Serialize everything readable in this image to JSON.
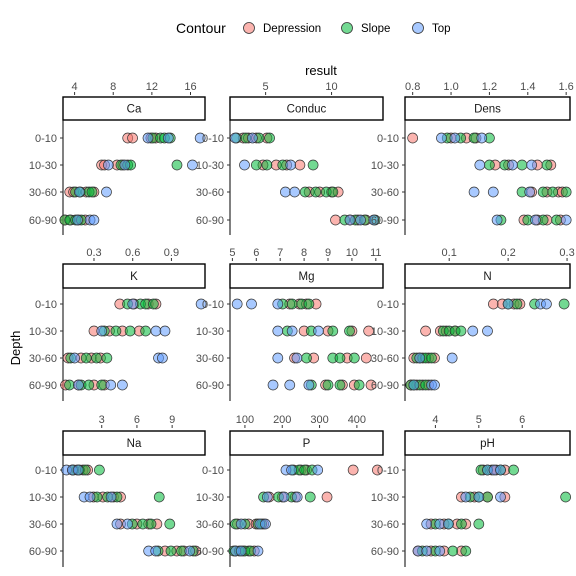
{
  "chart_data": {
    "type": "scatter",
    "title": "",
    "xlabel": "result",
    "ylabel": "Depth",
    "legend": {
      "title": "Contour",
      "position": "top",
      "entries": [
        {
          "name": "Depression",
          "color": "#F8766D"
        },
        {
          "name": "Slope",
          "color": "#00BA38"
        },
        {
          "name": "Top",
          "color": "#619CFF"
        }
      ]
    },
    "depth_levels": [
      "0-10",
      "10-30",
      "30-60",
      "60-90"
    ],
    "point_style": {
      "radius": 5,
      "fill_opacity": 0.55,
      "stroke": "#333333"
    },
    "grid": false,
    "facets": [
      {
        "name": "Ca",
        "xlim": [
          2.8,
          17.5
        ],
        "xticks": [
          4,
          8,
          12,
          16
        ],
        "points": {
          "Depression": {
            "0-10": [
              9.5,
              10.0,
              11.9,
              12.4
            ],
            "10-30": [
              6.8,
              7.1,
              8.4,
              9.0
            ],
            "30-60": [
              3.5,
              3.9,
              5.2,
              6.0
            ],
            "60-90": [
              3.0,
              3.6,
              4.4,
              5.1
            ]
          },
          "Slope": {
            "0-10": [
              12.1,
              12.9,
              13.3,
              13.9
            ],
            "10-30": [
              8.8,
              9.5,
              9.8,
              14.6
            ],
            "30-60": [
              4.1,
              4.6,
              5.5,
              5.8
            ],
            "60-90": [
              3.0,
              3.5,
              4.1,
              4.7
            ]
          },
          "Top": {
            "0-10": [
              11.6,
              13.7,
              17.0
            ],
            "10-30": [
              7.5,
              9.2,
              16.2
            ],
            "30-60": [
              4.5,
              7.3
            ],
            "60-90": [
              4.3,
              5.6,
              6.0
            ]
          }
        }
      },
      {
        "name": "Conduc",
        "xlim": [
          2.3,
          13.9
        ],
        "xticks": [
          5,
          10
        ],
        "points": {
          "Depression": {
            "0-10": [
              3.3,
              3.7,
              4.3,
              5.1
            ],
            "10-30": [
              4.8,
              5.8,
              6.6,
              7.6
            ],
            "30-60": [
              8.3,
              9.1,
              10.0,
              10.5
            ],
            "60-90": [
              10.3,
              11.4,
              12.0,
              12.6
            ]
          },
          "Slope": {
            "0-10": [
              2.8,
              3.5,
              4.5,
              5.3
            ],
            "10-30": [
              4.3,
              5.1,
              6.3,
              8.6
            ],
            "30-60": [
              8.0,
              8.8,
              9.6,
              10.1
            ],
            "60-90": [
              11.0,
              11.8,
              12.5,
              13.3
            ]
          },
          "Top": {
            "0-10": [
              2.7,
              4.0
            ],
            "10-30": [
              3.4,
              6.9
            ],
            "30-60": [
              6.5,
              7.2
            ],
            "60-90": [
              11.4,
              12.2,
              13.2
            ]
          }
        }
      },
      {
        "name": "Dens",
        "xlim": [
          0.76,
          1.62
        ],
        "xticks": [
          0.8,
          1.0,
          1.2,
          1.4,
          1.6
        ],
        "xtick_labels": [
          "0.8",
          "1.0",
          "1.2",
          "1.4",
          "1.6"
        ],
        "points": {
          "Depression": {
            "0-10": [
              0.8,
              1.0,
              1.08,
              1.13
            ],
            "10-30": [
              1.23,
              1.3,
              1.45,
              1.52
            ],
            "30-60": [
              1.42,
              1.5,
              1.56,
              1.58
            ],
            "60-90": [
              1.38,
              1.45,
              1.5,
              1.57
            ]
          },
          "Slope": {
            "0-10": [
              0.98,
              1.05,
              1.12,
              1.2
            ],
            "10-30": [
              1.2,
              1.28,
              1.37,
              1.5
            ],
            "30-60": [
              1.37,
              1.48,
              1.53,
              1.6
            ],
            "60-90": [
              1.26,
              1.4,
              1.48,
              1.55
            ]
          },
          "Top": {
            "0-10": [
              0.95,
              1.02,
              1.16
            ],
            "10-30": [
              1.15,
              1.32,
              1.42
            ],
            "30-60": [
              1.12,
              1.22,
              1.41
            ],
            "60-90": [
              1.24,
              1.44,
              1.6
            ]
          }
        }
      },
      {
        "name": "K",
        "xlim": [
          0.06,
          1.16
        ],
        "xticks": [
          0.3,
          0.6,
          0.9
        ],
        "points": {
          "Depression": {
            "0-10": [
              0.5,
              0.61,
              0.72,
              0.78
            ],
            "10-30": [
              0.3,
              0.42,
              0.52,
              0.65
            ],
            "30-60": [
              0.1,
              0.2,
              0.28,
              0.35
            ],
            "60-90": [
              0.08,
              0.18,
              0.3,
              0.38
            ]
          },
          "Slope": {
            "0-10": [
              0.56,
              0.66,
              0.7,
              0.76
            ],
            "10-30": [
              0.38,
              0.47,
              0.58,
              0.7
            ],
            "30-60": [
              0.12,
              0.24,
              0.32,
              0.4
            ],
            "60-90": [
              0.11,
              0.2,
              0.26,
              0.36
            ]
          },
          "Top": {
            "0-10": [
              0.6,
              1.13
            ],
            "10-30": [
              0.36,
              0.78,
              0.85
            ],
            "30-60": [
              0.15,
              0.8,
              0.83
            ],
            "60-90": [
              0.18,
              0.43,
              0.52
            ]
          }
        }
      },
      {
        "name": "Mg",
        "xlim": [
          4.9,
          11.3
        ],
        "xticks": [
          5,
          6,
          7,
          8,
          9,
          10,
          11
        ],
        "points": {
          "Depression": {
            "0-10": [
              7.4,
              7.8,
              8.1,
              8.5
            ],
            "10-30": [
              8.0,
              9.0,
              10.0,
              10.7
            ],
            "30-60": [
              7.6,
              8.4,
              9.8,
              10.6
            ],
            "60-90": [
              8.9,
              9.6,
              10.1,
              10.8
            ]
          },
          "Slope": {
            "0-10": [
              7.1,
              7.5,
              7.9,
              8.2
            ],
            "10-30": [
              7.3,
              8.3,
              9.2,
              9.9
            ],
            "30-60": [
              8.1,
              9.2,
              9.5,
              10.1
            ],
            "60-90": [
              8.3,
              9.0,
              9.5,
              10.3
            ]
          },
          "Top": {
            "0-10": [
              5.2,
              5.8,
              6.9
            ],
            "10-30": [
              6.9,
              7.5,
              8.6
            ],
            "30-60": [
              6.9,
              7.7
            ],
            "60-90": [
              6.7,
              7.4,
              8.2
            ]
          }
        }
      },
      {
        "name": "N",
        "xlim": [
          0.025,
          0.305
        ],
        "xticks": [
          0.1,
          0.2,
          0.3
        ],
        "points": {
          "Depression": {
            "0-10": [
              0.175,
              0.19,
              0.21,
              0.22
            ],
            "10-30": [
              0.06,
              0.085,
              0.095,
              0.11
            ],
            "30-60": [
              0.04,
              0.05,
              0.065,
              0.075
            ],
            "60-90": [
              0.035,
              0.045,
              0.055,
              0.065
            ]
          },
          "Slope": {
            "0-10": [
              0.2,
              0.215,
              0.245,
              0.295
            ],
            "10-30": [
              0.09,
              0.1,
              0.11,
              0.12
            ],
            "30-60": [
              0.045,
              0.055,
              0.06,
              0.07
            ],
            "60-90": [
              0.035,
              0.04,
              0.05,
              0.06
            ]
          },
          "Top": {
            "0-10": [
              0.2,
              0.255,
              0.265
            ],
            "10-30": [
              0.14,
              0.165
            ],
            "30-60": [
              0.05,
              0.105
            ],
            "60-90": [
              0.04,
              0.07,
              0.075
            ]
          }
        }
      },
      {
        "name": "Na",
        "xlim": [
          -0.3,
          11.8
        ],
        "xticks": [
          3,
          6,
          9
        ],
        "points": {
          "Depression": {
            "0-10": [
              0.5,
              0.9,
              1.4,
              1.8
            ],
            "10-30": [
              2.3,
              3.1,
              4.0,
              4.6
            ],
            "30-60": [
              4.6,
              6.0,
              7.0,
              7.7
            ],
            "60-90": [
              8.4,
              9.4,
              10.0,
              11.0
            ]
          },
          "Slope": {
            "0-10": [
              0.6,
              1.1,
              1.6,
              2.8
            ],
            "10-30": [
              2.6,
              3.5,
              4.3,
              7.9
            ],
            "30-60": [
              5.6,
              6.5,
              7.2,
              8.8
            ],
            "60-90": [
              7.8,
              8.9,
              9.8,
              10.8
            ]
          },
          "Top": {
            "0-10": [
              0.0,
              0.5,
              1.0
            ],
            "10-30": [
              1.5,
              2.0,
              3.8
            ],
            "30-60": [
              4.3,
              5.2
            ],
            "60-90": [
              7.0,
              7.6,
              10.5
            ]
          }
        }
      },
      {
        "name": "P",
        "xlim": [
          60,
          470
        ],
        "xticks": [
          100,
          200,
          300,
          400
        ],
        "points": {
          "Depression": {
            "0-10": [
              250,
              265,
              390,
              455
            ],
            "10-30": [
              165,
              200,
              235,
              320
            ],
            "30-60": [
              80,
              110,
              130,
              150
            ],
            "60-90": [
              75,
              95,
              110,
              125
            ]
          },
          "Slope": {
            "0-10": [
              230,
              245,
              260,
              280
            ],
            "10-30": [
              150,
              190,
              225,
              275
            ],
            "30-60": [
              75,
              100,
              135,
              145
            ],
            "60-90": [
              70,
              85,
              100,
              115
            ]
          },
          "Top": {
            "0-10": [
              210,
              225,
              295
            ],
            "10-30": [
              160,
              205,
              240
            ],
            "30-60": [
              90,
              140,
              155
            ],
            "60-90": [
              75,
              90,
              135
            ]
          }
        }
      },
      {
        "name": "pH",
        "xlim": [
          3.3,
          7.1
        ],
        "xticks": [
          4,
          5,
          6
        ],
        "points": {
          "Depression": {
            "0-10": [
              5.1,
              5.3,
              5.4,
              5.6
            ],
            "10-30": [
              4.6,
              4.9,
              5.2,
              5.6
            ],
            "30-60": [
              3.9,
              4.2,
              4.5,
              4.7
            ],
            "60-90": [
              3.6,
              3.9,
              4.2,
              4.6
            ]
          },
          "Slope": {
            "0-10": [
              5.05,
              5.2,
              5.5,
              5.8
            ],
            "10-30": [
              4.8,
              5.0,
              5.2,
              7.0
            ],
            "30-60": [
              4.0,
              4.3,
              4.6,
              5.0
            ],
            "60-90": [
              3.7,
              4.0,
              4.4,
              4.7
            ]
          },
          "Top": {
            "0-10": [
              5.2,
              5.35,
              5.5
            ],
            "10-30": [
              4.7,
              5.0,
              5.5
            ],
            "30-60": [
              3.8,
              4.1,
              4.3
            ],
            "60-90": [
              3.6,
              3.8,
              4.1
            ]
          }
        }
      }
    ]
  }
}
